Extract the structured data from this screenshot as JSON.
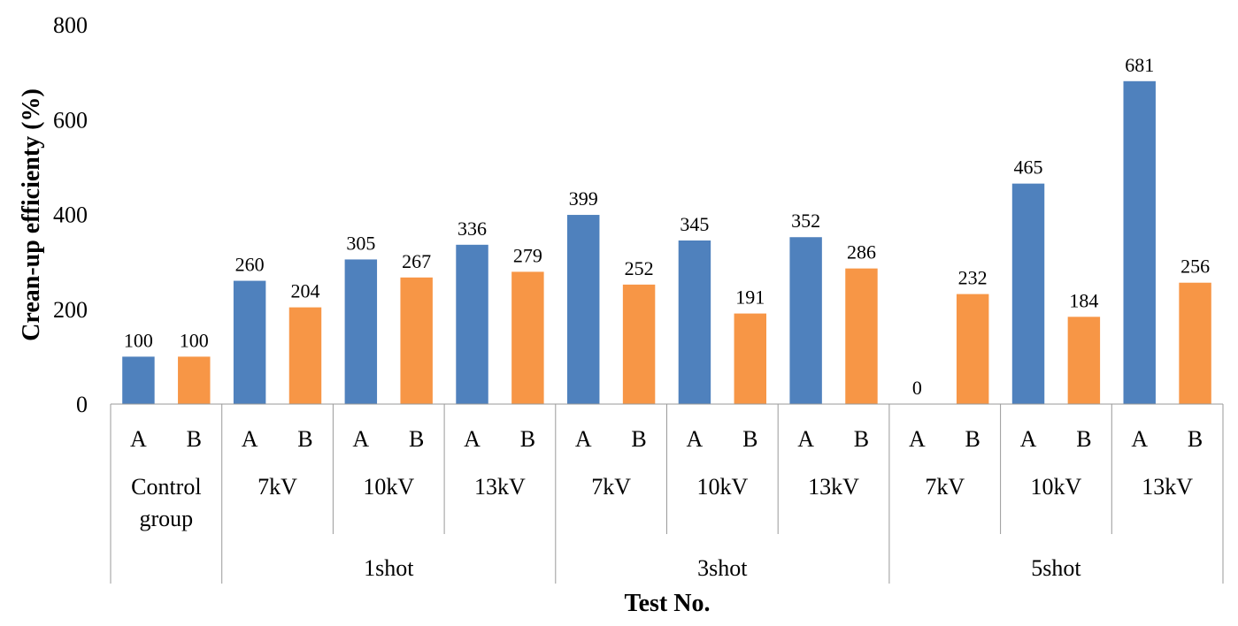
{
  "chart_data": {
    "type": "bar",
    "title": "",
    "ylabel": "Crean-up efficienty (%)",
    "xlabel": "Test No.",
    "ylim": [
      0,
      800
    ],
    "yticks": [
      0,
      200,
      400,
      600,
      800
    ],
    "grid": false,
    "legend": "none",
    "categories": [
      {
        "sub": "A",
        "group": "Control group",
        "shot": "",
        "value": 100
      },
      {
        "sub": "B",
        "group": "Control group",
        "shot": "",
        "value": 100
      },
      {
        "sub": "A",
        "group": "7kV",
        "shot": "1shot",
        "value": 260
      },
      {
        "sub": "B",
        "group": "7kV",
        "shot": "1shot",
        "value": 204
      },
      {
        "sub": "A",
        "group": "10kV",
        "shot": "1shot",
        "value": 305
      },
      {
        "sub": "B",
        "group": "10kV",
        "shot": "1shot",
        "value": 267
      },
      {
        "sub": "A",
        "group": "13kV",
        "shot": "1shot",
        "value": 336
      },
      {
        "sub": "B",
        "group": "13kV",
        "shot": "1shot",
        "value": 279
      },
      {
        "sub": "A",
        "group": "7kV",
        "shot": "3shot",
        "value": 399
      },
      {
        "sub": "B",
        "group": "7kV",
        "shot": "3shot",
        "value": 252
      },
      {
        "sub": "A",
        "group": "10kV",
        "shot": "3shot",
        "value": 345
      },
      {
        "sub": "B",
        "group": "10kV",
        "shot": "3shot",
        "value": 191
      },
      {
        "sub": "A",
        "group": "13kV",
        "shot": "3shot",
        "value": 352
      },
      {
        "sub": "B",
        "group": "13kV",
        "shot": "3shot",
        "value": 286
      },
      {
        "sub": "A",
        "group": "7kV",
        "shot": "5shot",
        "value": 0
      },
      {
        "sub": "B",
        "group": "7kV",
        "shot": "5shot",
        "value": 232
      },
      {
        "sub": "A",
        "group": "10kV",
        "shot": "5shot",
        "value": 465
      },
      {
        "sub": "B",
        "group": "10kV",
        "shot": "5shot",
        "value": 184
      },
      {
        "sub": "A",
        "group": "13kV",
        "shot": "5shot",
        "value": 681
      },
      {
        "sub": "B",
        "group": "13kV",
        "shot": "5shot",
        "value": 256
      }
    ],
    "groups": [
      {
        "label_lines": [
          "Control",
          "group"
        ],
        "start": 0,
        "end": 1
      },
      {
        "label_lines": [
          "7kV"
        ],
        "start": 2,
        "end": 3
      },
      {
        "label_lines": [
          "10kV"
        ],
        "start": 4,
        "end": 5
      },
      {
        "label_lines": [
          "13kV"
        ],
        "start": 6,
        "end": 7
      },
      {
        "label_lines": [
          "7kV"
        ],
        "start": 8,
        "end": 9
      },
      {
        "label_lines": [
          "10kV"
        ],
        "start": 10,
        "end": 11
      },
      {
        "label_lines": [
          "13kV"
        ],
        "start": 12,
        "end": 13
      },
      {
        "label_lines": [
          "7kV"
        ],
        "start": 14,
        "end": 15
      },
      {
        "label_lines": [
          "10kV"
        ],
        "start": 16,
        "end": 17
      },
      {
        "label_lines": [
          "13kV"
        ],
        "start": 18,
        "end": 19
      }
    ],
    "shots": [
      {
        "label": "",
        "start": 0,
        "end": 1
      },
      {
        "label": "1shot",
        "start": 2,
        "end": 7
      },
      {
        "label": "3shot",
        "start": 8,
        "end": 13
      },
      {
        "label": "5shot",
        "start": 14,
        "end": 19
      }
    ],
    "colors": {
      "A": "#4f81bd",
      "B": "#f79646"
    }
  }
}
